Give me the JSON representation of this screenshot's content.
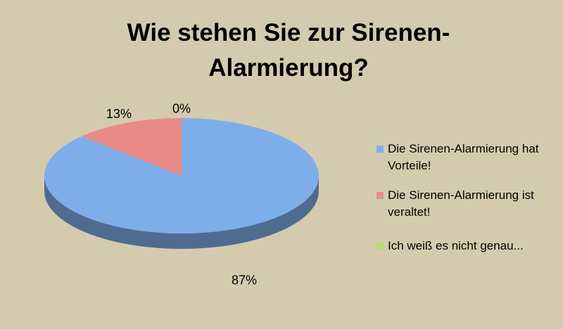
{
  "chart_data": {
    "type": "pie3d",
    "title": "Wie stehen Sie zur Sirenen-Alarmierung?",
    "categories": [
      "Die Sirenen-Alarmierung hat Vorteile!",
      "Die Sirenen-Alarmierung ist veraltet!",
      "Ich weiß es nicht genau..."
    ],
    "values": [
      87,
      13,
      0
    ],
    "value_labels": [
      "87%",
      "13%",
      "0%"
    ],
    "colors": [
      "#7eaee9",
      "#ea8a86",
      "#b8dc72"
    ]
  }
}
